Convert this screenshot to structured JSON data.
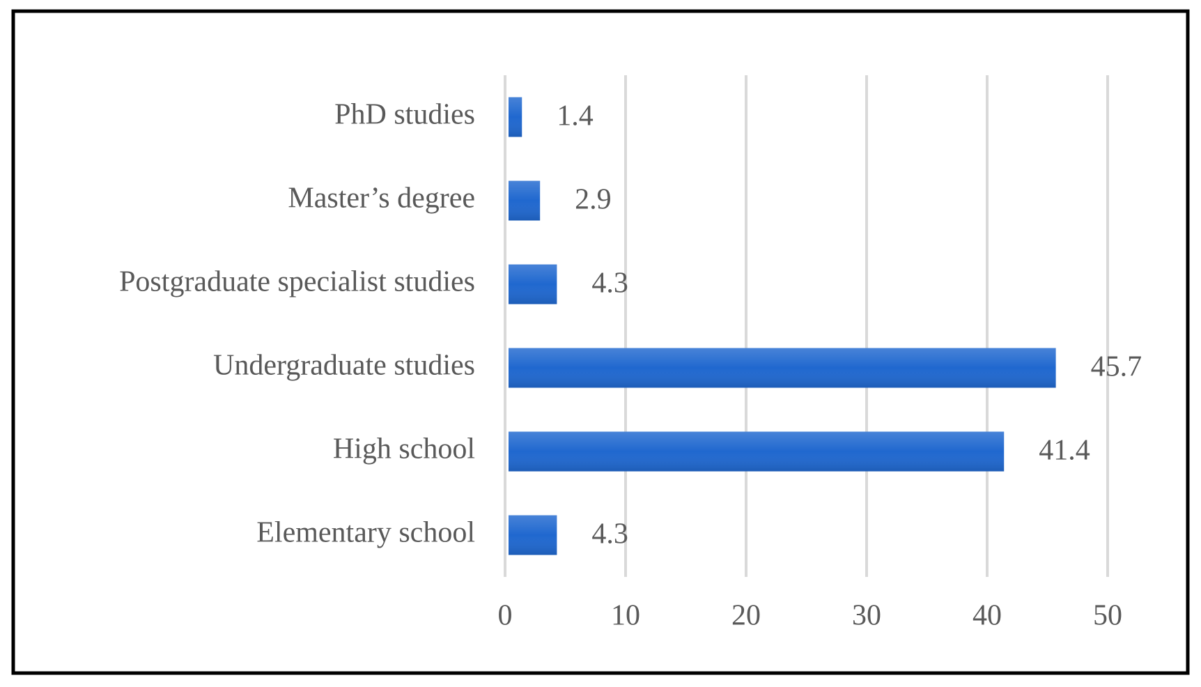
{
  "chart_data": {
    "type": "bar",
    "orientation": "horizontal",
    "categories": [
      "PhD studies",
      "Master’s degree",
      "Postgraduate specialist studies",
      "Undergraduate studies",
      "High school",
      "Elementary school"
    ],
    "values": [
      1.4,
      2.9,
      4.3,
      45.7,
      41.4,
      4.3
    ],
    "color": "#2068cf",
    "xlim": [
      0,
      50
    ],
    "xticks": [
      0,
      10,
      20,
      30,
      40,
      50
    ],
    "grid": true
  }
}
